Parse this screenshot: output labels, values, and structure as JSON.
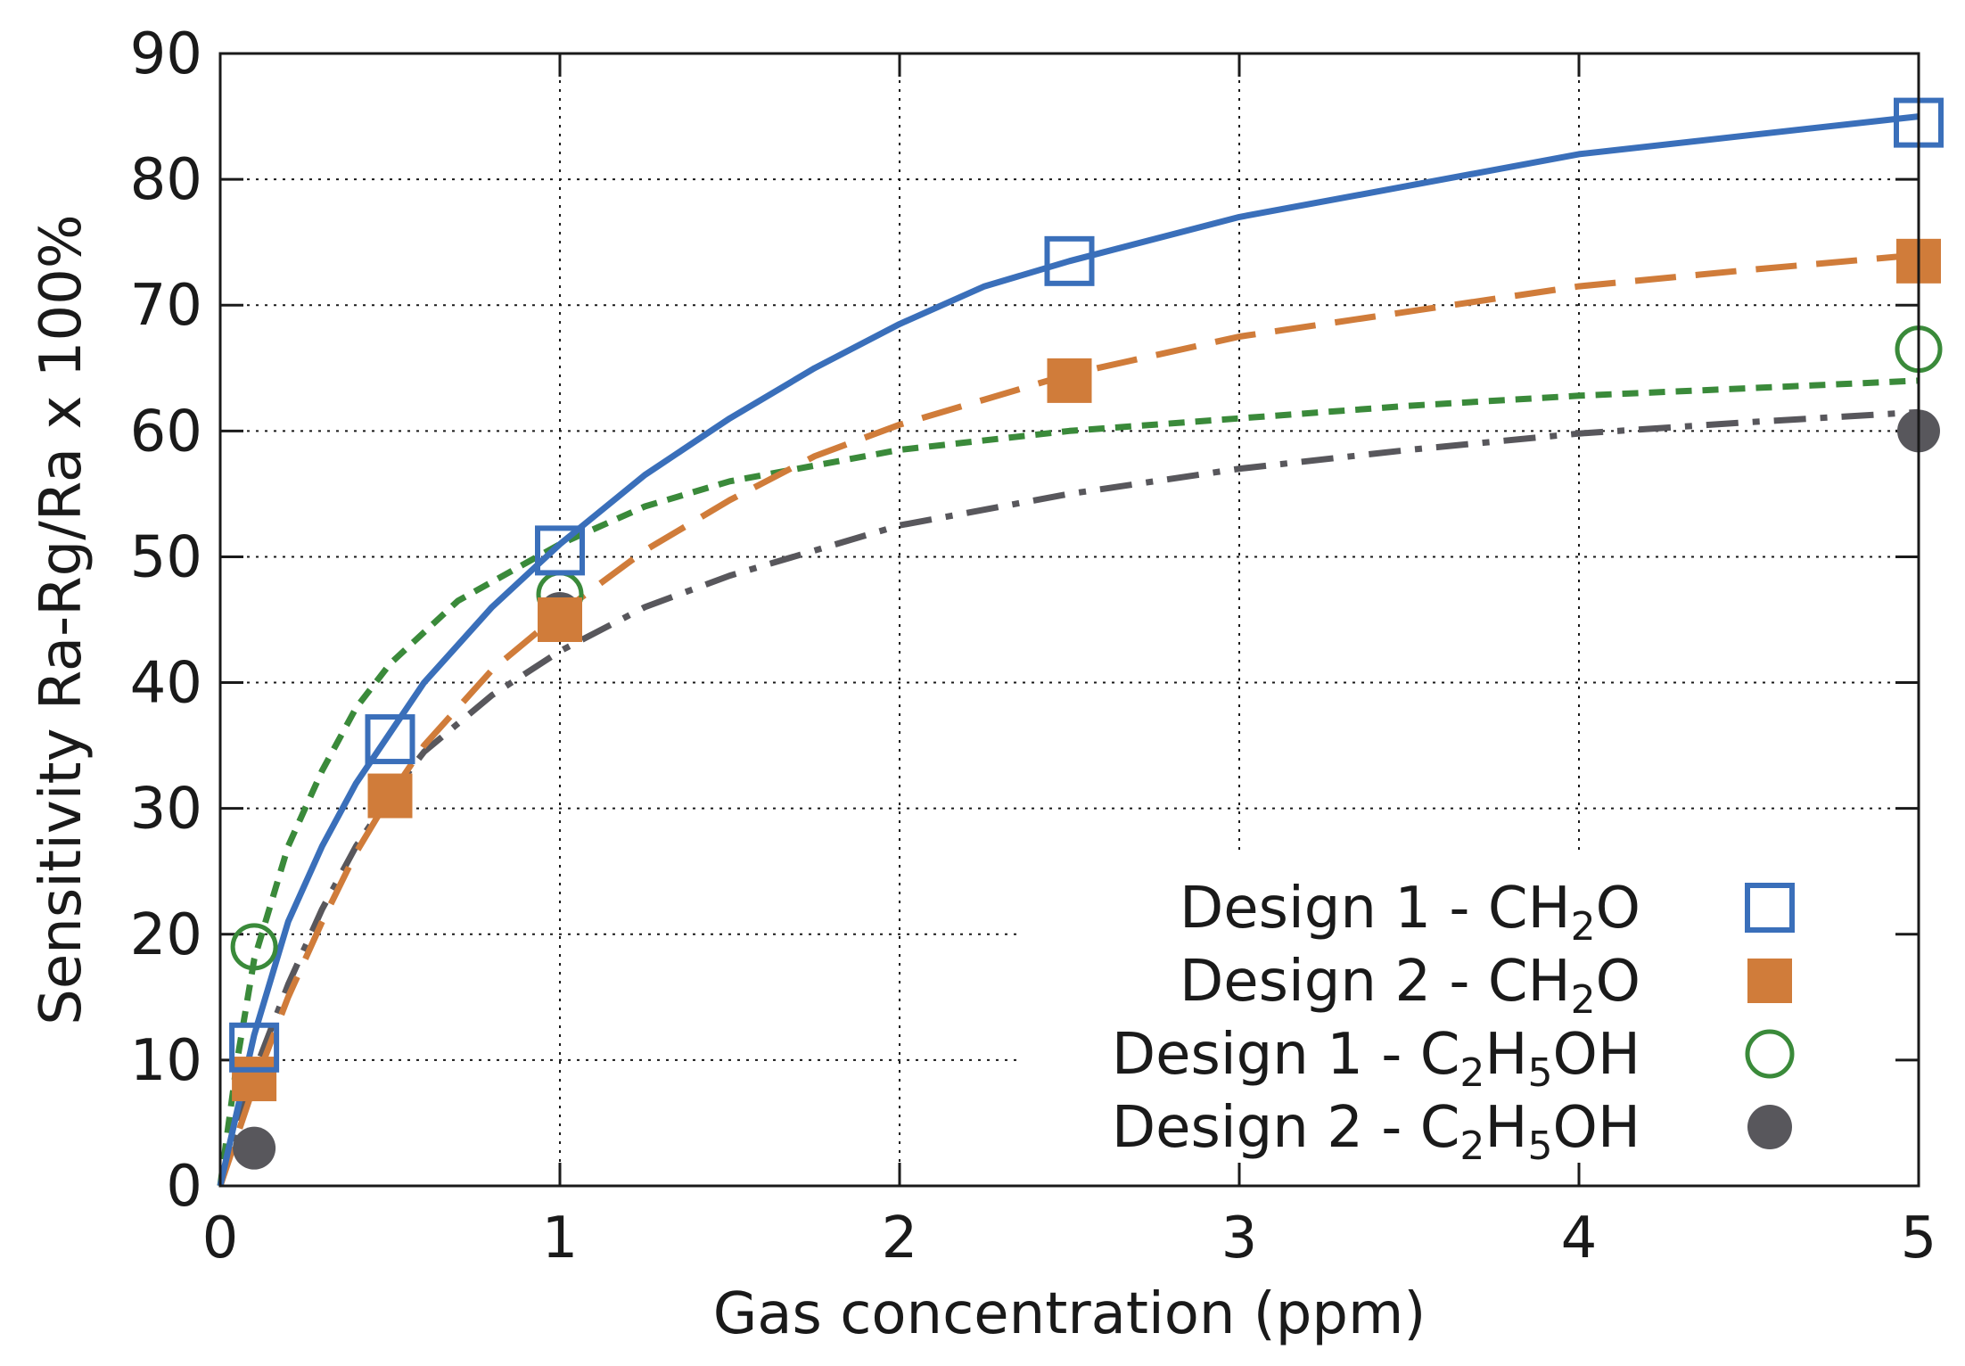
{
  "chart_data": {
    "type": "scatter",
    "title": "",
    "xlabel": "Gas concentration (ppm)",
    "ylabel": "Sensitivity Ra-Rg/Ra x 100%",
    "xlim": [
      0,
      5
    ],
    "ylim": [
      0,
      90
    ],
    "xticks": [
      0,
      1,
      2,
      3,
      4,
      5
    ],
    "yticks": [
      0,
      10,
      20,
      30,
      40,
      50,
      60,
      70,
      80,
      90
    ],
    "grid": true,
    "legend_position": "bottom-right",
    "series": [
      {
        "name": "Design 1 - CH2O",
        "label_parts": [
          "Design 1 - CH",
          "2",
          "O"
        ],
        "marker": "open-square",
        "line_style": "solid",
        "color": "#3a6fba",
        "x": [
          0.1,
          0.5,
          1,
          2.5,
          5
        ],
        "y": [
          11,
          35.5,
          50.5,
          73.5,
          84.5
        ],
        "fit": [
          [
            0,
            0
          ],
          [
            0.05,
            6
          ],
          [
            0.1,
            12
          ],
          [
            0.2,
            21
          ],
          [
            0.3,
            27
          ],
          [
            0.4,
            32
          ],
          [
            0.5,
            36
          ],
          [
            0.6,
            40
          ],
          [
            0.8,
            46
          ],
          [
            1,
            51
          ],
          [
            1.25,
            56.5
          ],
          [
            1.5,
            61
          ],
          [
            1.75,
            65
          ],
          [
            2,
            68.5
          ],
          [
            2.25,
            71.5
          ],
          [
            2.5,
            73.5
          ],
          [
            3,
            77
          ],
          [
            3.5,
            79.5
          ],
          [
            4,
            82
          ],
          [
            4.5,
            83.5
          ],
          [
            5,
            85
          ]
        ]
      },
      {
        "name": "Design 2 - CH2O",
        "label_parts": [
          "Design 2 - CH",
          "2",
          "O"
        ],
        "marker": "filled-square",
        "line_style": "long-dash",
        "color": "#d07c3a",
        "x": [
          0.1,
          0.5,
          1,
          2.5,
          5
        ],
        "y": [
          8.5,
          31,
          45,
          64,
          73.5
        ],
        "fit": [
          [
            0,
            0
          ],
          [
            0.1,
            8
          ],
          [
            0.2,
            15
          ],
          [
            0.3,
            21
          ],
          [
            0.4,
            26.5
          ],
          [
            0.5,
            31
          ],
          [
            0.6,
            35
          ],
          [
            0.8,
            41
          ],
          [
            1,
            45.5
          ],
          [
            1.25,
            50.5
          ],
          [
            1.5,
            54.5
          ],
          [
            1.75,
            58
          ],
          [
            2,
            60.5
          ],
          [
            2.25,
            62.5
          ],
          [
            2.5,
            64.5
          ],
          [
            3,
            67.5
          ],
          [
            3.5,
            69.5
          ],
          [
            4,
            71.5
          ],
          [
            4.5,
            72.8
          ],
          [
            5,
            74
          ]
        ]
      },
      {
        "name": "Design 1 - C2H5OH",
        "label_parts": [
          "Design 1 - C",
          "2",
          "H",
          "5",
          "OH"
        ],
        "marker": "open-circle",
        "line_style": "short-dash",
        "color": "#3a8a3a",
        "x": [
          0.1,
          1,
          5
        ],
        "y": [
          19,
          47,
          66.5
        ],
        "fit": [
          [
            0,
            0
          ],
          [
            0.05,
            10
          ],
          [
            0.1,
            18
          ],
          [
            0.2,
            27
          ],
          [
            0.3,
            33
          ],
          [
            0.4,
            38
          ],
          [
            0.5,
            41.5
          ],
          [
            0.7,
            46.5
          ],
          [
            1,
            51
          ],
          [
            1.25,
            54
          ],
          [
            1.5,
            56
          ],
          [
            2,
            58.5
          ],
          [
            2.5,
            60
          ],
          [
            3,
            61
          ],
          [
            3.5,
            62
          ],
          [
            4,
            62.8
          ],
          [
            4.5,
            63.4
          ],
          [
            5,
            64
          ]
        ]
      },
      {
        "name": "Design 2 - C2H5OH",
        "label_parts": [
          "Design 2 - C",
          "2",
          "H",
          "5",
          "OH"
        ],
        "marker": "filled-circle",
        "line_style": "dash-dot",
        "color": "#58575c",
        "x": [
          0.1,
          1,
          5
        ],
        "y": [
          3,
          45.5,
          60
        ],
        "fit": [
          [
            0,
            0
          ],
          [
            0.1,
            9
          ],
          [
            0.2,
            16
          ],
          [
            0.3,
            22
          ],
          [
            0.4,
            27
          ],
          [
            0.5,
            31
          ],
          [
            0.6,
            34.5
          ],
          [
            0.8,
            39
          ],
          [
            1,
            42.5
          ],
          [
            1.25,
            46
          ],
          [
            1.5,
            48.5
          ],
          [
            2,
            52.5
          ],
          [
            2.5,
            55
          ],
          [
            3,
            57
          ],
          [
            3.5,
            58.5
          ],
          [
            4,
            59.8
          ],
          [
            4.5,
            60.7
          ],
          [
            5,
            61.5
          ]
        ]
      }
    ]
  }
}
